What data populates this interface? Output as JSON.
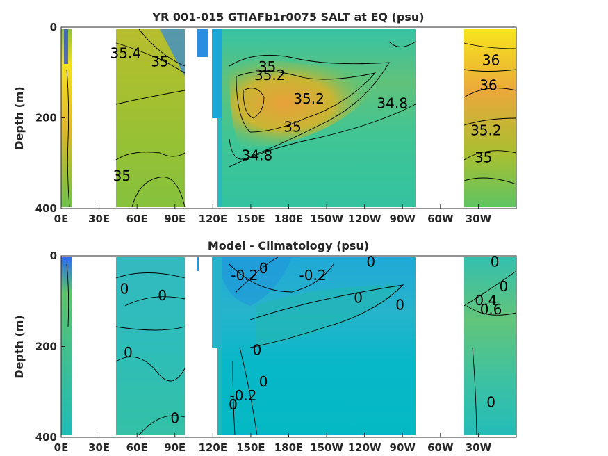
{
  "chart_data": [
    {
      "type": "heatmap",
      "title": "YR 001-015 GTIAFb1r0075 SALT at EQ (psu)",
      "ylabel": "Depth (m)",
      "xlabel": "",
      "x_ticks": [
        "0E",
        "30E",
        "60E",
        "90E",
        "120E",
        "150E",
        "180E",
        "150W",
        "120W",
        "90W",
        "60W",
        "30W"
      ],
      "y_ticks": [
        "0",
        "200",
        "400"
      ],
      "ylim": [
        400,
        0
      ],
      "colormap": "parula",
      "contour_labels": [
        {
          "text": "35.4",
          "lon": 51,
          "depth": 60
        },
        {
          "text": "35",
          "lon": 78,
          "depth": 78
        },
        {
          "text": "35",
          "lon": 163,
          "depth": 90
        },
        {
          "text": "35.2",
          "lon": 165,
          "depth": 108
        },
        {
          "text": "35.2",
          "lon": 196,
          "depth": 160
        },
        {
          "text": "34.8",
          "lon": 262,
          "depth": 170
        },
        {
          "text": "35",
          "lon": 183,
          "depth": 222
        },
        {
          "text": "34.8",
          "lon": 155,
          "depth": 285
        },
        {
          "text": "35",
          "lon": 48,
          "depth": 330
        },
        {
          "text": "36",
          "lon": 340,
          "depth": 75
        },
        {
          "text": "36",
          "lon": 338,
          "depth": 130
        },
        {
          "text": "35.2",
          "lon": 336,
          "depth": 230
        },
        {
          "text": "35",
          "lon": 334,
          "depth": 290
        }
      ]
    },
    {
      "type": "heatmap",
      "title": "Model - Climatology (psu)",
      "ylabel": "Depth (m)",
      "xlabel": "",
      "x_ticks": [
        "0E",
        "30E",
        "60E",
        "90E",
        "120E",
        "150E",
        "180E",
        "150W",
        "120W",
        "90W",
        "60W",
        "30W"
      ],
      "y_ticks": [
        "0",
        "200",
        "400"
      ],
      "ylim": [
        400,
        0
      ],
      "colormap": "parula",
      "contour_labels": [
        {
          "text": "0",
          "lon": 50,
          "depth": 75
        },
        {
          "text": "0",
          "lon": 80,
          "depth": 90
        },
        {
          "text": "-0.2",
          "lon": 145,
          "depth": 45
        },
        {
          "text": "0",
          "lon": 160,
          "depth": 30
        },
        {
          "text": "-0.2",
          "lon": 199,
          "depth": 45
        },
        {
          "text": "0",
          "lon": 245,
          "depth": 15
        },
        {
          "text": "0",
          "lon": 235,
          "depth": 95
        },
        {
          "text": "0",
          "lon": 268,
          "depth": 110
        },
        {
          "text": "0",
          "lon": 343,
          "depth": 15
        },
        {
          "text": "0",
          "lon": 350,
          "depth": 70
        },
        {
          "text": "0.4",
          "lon": 336,
          "depth": 100
        },
        {
          "text": "0.6",
          "lon": 340,
          "depth": 120
        },
        {
          "text": "0",
          "lon": 53,
          "depth": 215
        },
        {
          "text": "0",
          "lon": 155,
          "depth": 210
        },
        {
          "text": "0",
          "lon": 160,
          "depth": 280
        },
        {
          "text": "-0.2",
          "lon": 144,
          "depth": 310
        },
        {
          "text": "0",
          "lon": 136,
          "depth": 330
        },
        {
          "text": "0",
          "lon": 90,
          "depth": 360
        },
        {
          "text": "0",
          "lon": 340,
          "depth": 325
        }
      ]
    }
  ]
}
